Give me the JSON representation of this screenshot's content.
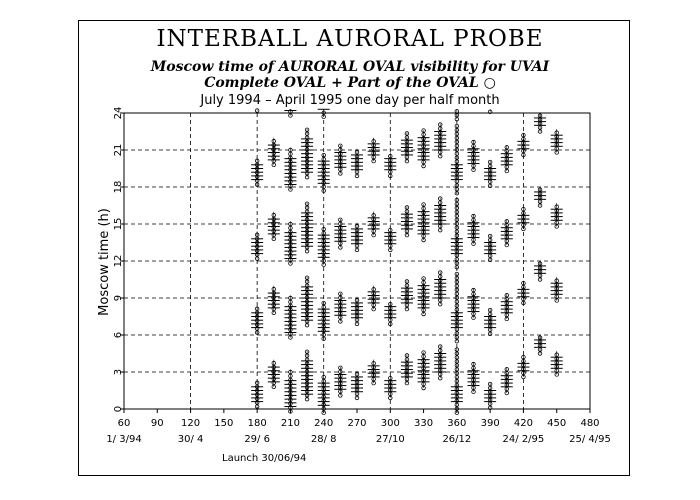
{
  "title": "INTERBALL AURORAL PROBE",
  "subtitle1": "Moscow time of AURORAL OVAL visibility for UVAI",
  "subtitle2": "Complete OVAL + Part of the OVAL ○",
  "subtitle3": "July 1994 – April 1995 one day per half month",
  "launch_note": "Launch 30/06/94",
  "chart_data": {
    "type": "scatter",
    "title": "INTERBALL AURORAL PROBE",
    "ylabel": "Moscow time (h)",
    "xlabel": "",
    "xlim": [
      60,
      480
    ],
    "ylim": [
      0,
      24
    ],
    "x_ticks": [
      60,
      90,
      120,
      150,
      180,
      210,
      240,
      270,
      300,
      330,
      360,
      390,
      420,
      450,
      480
    ],
    "y_ticks": [
      0,
      3,
      6,
      9,
      12,
      15,
      18,
      21,
      24
    ],
    "date_ticks": [
      {
        "x": 60,
        "label": "1/ 3/94"
      },
      {
        "x": 120,
        "label": "30/ 4"
      },
      {
        "x": 180,
        "label": "29/ 6"
      },
      {
        "x": 240,
        "label": "28/ 8"
      },
      {
        "x": 300,
        "label": "27/10"
      },
      {
        "x": 360,
        "label": "26/12"
      },
      {
        "x": 420,
        "label": "24/ 2/95"
      },
      {
        "x": 480,
        "label": "25/ 4/95"
      }
    ],
    "grid": "dashed",
    "period_h": 6,
    "series": [
      {
        "name": "Complete OVAL",
        "marker": "+",
        "days": [
          {
            "x": 180,
            "start": 0.6,
            "end": 1.8
          },
          {
            "x": 195,
            "start": 2.2,
            "end": 3.6
          },
          {
            "x": 210,
            "start": 0.2,
            "end": 2.4
          },
          {
            "x": 225,
            "start": 1.2,
            "end": 3.9
          },
          {
            "x": 240,
            "start": 0.3,
            "end": 2.1
          },
          {
            "x": 255,
            "start": 1.6,
            "end": 2.9
          },
          {
            "x": 270,
            "start": 1.4,
            "end": 2.6
          },
          {
            "x": 285,
            "start": 2.6,
            "end": 3.5
          },
          {
            "x": 300,
            "start": 1.4,
            "end": 2.3
          },
          {
            "x": 315,
            "start": 2.6,
            "end": 3.9
          },
          {
            "x": 330,
            "start": 2.2,
            "end": 4.1
          },
          {
            "x": 345,
            "start": 3.0,
            "end": 4.6
          },
          {
            "x": 360,
            "start": 0.6,
            "end": 2.0
          },
          {
            "x": 375,
            "start": 1.9,
            "end": 3.3
          },
          {
            "x": 390,
            "start": 0.6,
            "end": 1.6
          },
          {
            "x": 405,
            "start": 1.8,
            "end": 2.9
          },
          {
            "x": 420,
            "start": 3.1,
            "end": 3.9
          },
          {
            "x": 435,
            "start": 5.0,
            "end": 5.8
          },
          {
            "x": 450,
            "start": 3.3,
            "end": 4.2
          }
        ]
      },
      {
        "name": "Part of the OVAL",
        "marker": "o",
        "days": [
          {
            "x": 180,
            "start": 0.2,
            "end": 2.4
          },
          {
            "x": 195,
            "start": 1.8,
            "end": 4.0
          },
          {
            "x": 210,
            "start": -0.2,
            "end": 3.2
          },
          {
            "x": 225,
            "start": 0.8,
            "end": 4.7
          },
          {
            "x": 240,
            "start": -0.3,
            "end": 2.7
          },
          {
            "x": 255,
            "start": 1.1,
            "end": 3.4
          },
          {
            "x": 270,
            "start": 0.9,
            "end": 3.1
          },
          {
            "x": 285,
            "start": 2.1,
            "end": 4.0
          },
          {
            "x": 300,
            "start": 0.9,
            "end": 2.8
          },
          {
            "x": 315,
            "start": 2.1,
            "end": 4.4
          },
          {
            "x": 330,
            "start": 1.7,
            "end": 4.6
          },
          {
            "x": 345,
            "start": 2.5,
            "end": 5.1
          },
          {
            "x": 360,
            "start": -0.5,
            "end": 5.0
          },
          {
            "x": 375,
            "start": 1.4,
            "end": 3.8
          },
          {
            "x": 390,
            "start": 0.1,
            "end": 2.1
          },
          {
            "x": 405,
            "start": 1.3,
            "end": 3.4
          },
          {
            "x": 420,
            "start": 2.6,
            "end": 4.4
          },
          {
            "x": 435,
            "start": 4.5,
            "end": 6.0
          },
          {
            "x": 450,
            "start": 2.8,
            "end": 4.7
          }
        ]
      }
    ]
  }
}
